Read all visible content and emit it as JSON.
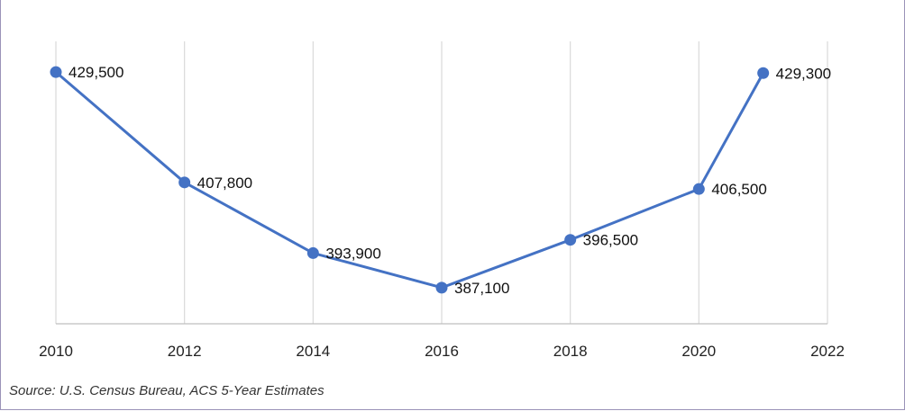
{
  "chart_data": {
    "type": "line",
    "x": [
      2010,
      2012,
      2014,
      2016,
      2018,
      2020,
      2021
    ],
    "values": [
      429500,
      407800,
      393900,
      387100,
      396500,
      406500,
      429300
    ],
    "data_labels": [
      "429,500",
      "407,800",
      "393,900",
      "387,100",
      "396,500",
      "406,500",
      "429,300"
    ],
    "xticks": [
      "2010",
      "2012",
      "2014",
      "2016",
      "2018",
      "2020",
      "2022"
    ],
    "xlim": [
      2010,
      2022
    ],
    "ylim": [
      380000,
      432000
    ],
    "grid": "vertical",
    "colors": {
      "line": "#4472c4",
      "grid": "#d9d9d9",
      "axis": "#bfbfbf"
    },
    "title": "",
    "xlabel": "",
    "ylabel": ""
  },
  "source_note": "Source: U.S. Census Bureau, ACS 5-Year Estimates"
}
